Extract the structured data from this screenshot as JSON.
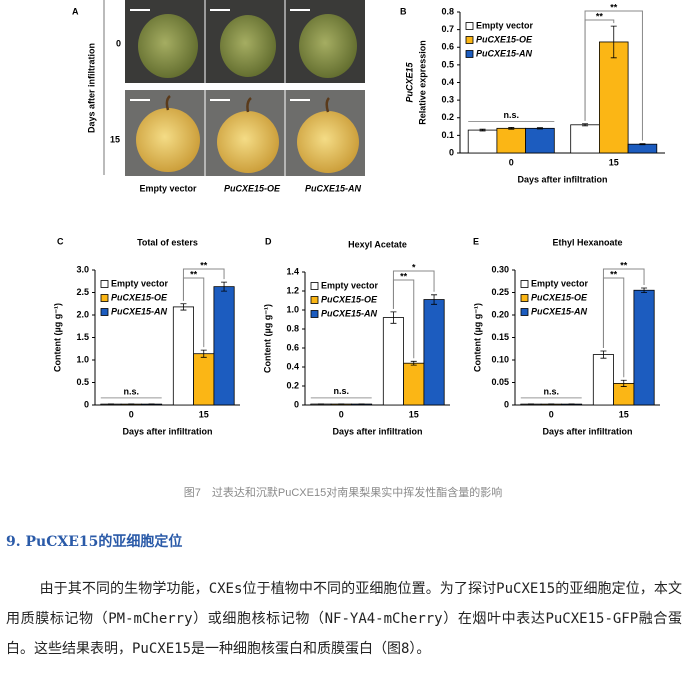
{
  "figure": {
    "panel_a": {
      "letter": "A",
      "y_label": "Days after infiltration",
      "rows": [
        "0",
        "15"
      ],
      "columns": [
        "Empty vector",
        "PuCXE15-OE",
        "PuCXE15-AN"
      ]
    }
  },
  "chart_data": [
    {
      "type": "bar",
      "panel": "B",
      "ylabel": [
        "PuCXE15",
        "Relative expression"
      ],
      "xlabel": "Days after infiltration",
      "categories": [
        "0",
        "15"
      ],
      "ylim": [
        0,
        0.8
      ],
      "yticks": [
        0,
        0.1,
        0.2,
        0.3,
        0.4,
        0.5,
        0.6,
        0.7,
        0.8
      ],
      "grid": false,
      "series": [
        {
          "name": "Empty vector",
          "color": "#ffffff",
          "values": [
            0.13,
            0.16
          ],
          "errors": [
            0.005,
            0.006
          ]
        },
        {
          "name": "PuCXE15-OE",
          "color": "#fbb615",
          "values": [
            0.14,
            0.63
          ],
          "errors": [
            0.005,
            0.09
          ]
        },
        {
          "name": "PuCXE15-AN",
          "color": "#1c5cbf",
          "values": [
            0.14,
            0.05
          ],
          "errors": [
            0.004,
            0.003
          ]
        }
      ],
      "annotations": [
        "n.s.",
        "**",
        "**"
      ]
    },
    {
      "type": "bar",
      "panel": "C",
      "title": "Total of esters",
      "ylabel": "Content (µg g⁻¹)",
      "xlabel": "Days after infiltration",
      "categories": [
        "0",
        "15"
      ],
      "ylim": [
        0,
        3
      ],
      "yticks": [
        0,
        0.5,
        {
          "value": 1,
          "label": "1.0"
        },
        1.5,
        {
          "value": 2,
          "label": "2.0"
        },
        2.5,
        {
          "value": 3,
          "label": "3.0"
        }
      ],
      "grid": false,
      "series": [
        {
          "name": "Empty vector",
          "color": "#ffffff",
          "values": [
            0.02,
            2.18
          ],
          "errors": [
            0.005,
            0.07
          ]
        },
        {
          "name": "PuCXE15-OE",
          "color": "#fbb615",
          "values": [
            0.02,
            1.14
          ],
          "errors": [
            0.005,
            0.08
          ]
        },
        {
          "name": "PuCXE15-AN",
          "color": "#1c5cbf",
          "values": [
            0.02,
            2.63
          ],
          "errors": [
            0.005,
            0.1
          ]
        }
      ],
      "annotations": [
        "n.s.",
        "**",
        "**"
      ]
    },
    {
      "type": "bar",
      "panel": "D",
      "title": "Hexyl Acetate",
      "ylabel": "Content (µg g⁻¹)",
      "xlabel": "Days after infiltration",
      "categories": [
        "0",
        "15"
      ],
      "ylim": [
        0,
        1.4
      ],
      "yticks": [
        0,
        0.2,
        0.4,
        0.6,
        0.8,
        {
          "value": 1,
          "label": "1.0"
        },
        1.2,
        1.4
      ],
      "grid": false,
      "series": [
        {
          "name": "Empty vector",
          "color": "#ffffff",
          "values": [
            0.01,
            0.92
          ],
          "errors": [
            0.002,
            0.06
          ]
        },
        {
          "name": "PuCXE15-OE",
          "color": "#fbb615",
          "values": [
            0.01,
            0.44
          ],
          "errors": [
            0.002,
            0.02
          ]
        },
        {
          "name": "PuCXE15-AN",
          "color": "#1c5cbf",
          "values": [
            0.01,
            1.11
          ],
          "errors": [
            0.002,
            0.05
          ]
        }
      ],
      "annotations": [
        "n.s.",
        "**",
        "*"
      ]
    },
    {
      "type": "bar",
      "panel": "E",
      "title": "Ethyl Hexanoate",
      "ylabel": "Content (µg g⁻¹)",
      "xlabel": "Days after infiltration",
      "categories": [
        "0",
        "15"
      ],
      "ylim": [
        0,
        0.3
      ],
      "yticks": [
        0,
        0.05,
        {
          "value": 0.1,
          "label": "0.10"
        },
        0.15,
        {
          "value": 0.2,
          "label": "0.20"
        },
        0.25,
        {
          "value": 0.3,
          "label": "0.30"
        }
      ],
      "grid": false,
      "series": [
        {
          "name": "Empty vector",
          "color": "#ffffff",
          "values": [
            0.002,
            0.112
          ],
          "errors": [
            0.0005,
            0.008
          ]
        },
        {
          "name": "PuCXE15-OE",
          "color": "#fbb615",
          "values": [
            0.002,
            0.048
          ],
          "errors": [
            0.0005,
            0.007
          ]
        },
        {
          "name": "PuCXE15-AN",
          "color": "#1c5cbf",
          "values": [
            0.002,
            0.255
          ],
          "errors": [
            0.0005,
            0.005
          ]
        }
      ],
      "annotations": [
        "n.s.",
        "**",
        "**"
      ]
    }
  ],
  "caption": "图7　过表达和沉默PuCXE15对南果梨果实中挥发性酯含量的影响",
  "section_heading": "9. PuCXE15的亚细胞定位",
  "paragraph": "由于其不同的生物学功能，CXEs位于植物中不同的亚细胞位置。为了探讨PuCXE15的亚细胞定位，本文用质膜标记物（PM-mCherry）或细胞核标记物（NF-YA4-mCherry）在烟叶中表达PuCXE15-GFP融合蛋白。这些结果表明，PuCXE15是一种细胞核蛋白和质膜蛋白（图8）。"
}
